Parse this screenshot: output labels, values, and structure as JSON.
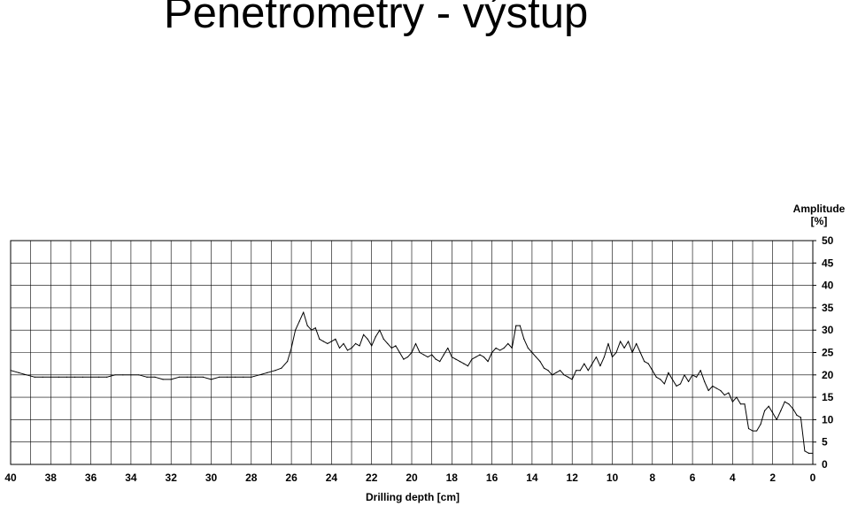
{
  "slide": {
    "title": "Penetrometry - výstup"
  },
  "chart_data": {
    "type": "line",
    "xlabel": "Drilling depth [cm]",
    "ylabel_line1": "Amplitude",
    "ylabel_line2": "[%]",
    "xlim": [
      40,
      0
    ],
    "ylim": [
      0,
      50
    ],
    "x_ticks": [
      40,
      38,
      36,
      34,
      32,
      30,
      28,
      26,
      24,
      22,
      20,
      18,
      16,
      14,
      12,
      10,
      8,
      6,
      4,
      2,
      0
    ],
    "y_ticks": [
      0,
      5,
      10,
      15,
      20,
      25,
      30,
      35,
      40,
      45,
      50
    ],
    "grid": true,
    "series": [
      {
        "color": "#000000",
        "x": [
          40.0,
          39.6,
          39.2,
          38.8,
          38.4,
          38.0,
          37.6,
          37.2,
          36.8,
          36.4,
          36.0,
          35.6,
          35.2,
          34.8,
          34.4,
          34.0,
          33.6,
          33.2,
          32.8,
          32.4,
          32.0,
          31.6,
          31.2,
          30.8,
          30.4,
          30.0,
          29.6,
          29.2,
          28.8,
          28.4,
          28.0,
          27.6,
          27.2,
          26.8,
          26.5,
          26.2,
          26.0,
          25.8,
          25.6,
          25.4,
          25.2,
          25.0,
          24.8,
          24.6,
          24.4,
          24.2,
          24.0,
          23.8,
          23.6,
          23.4,
          23.2,
          23.0,
          22.8,
          22.6,
          22.4,
          22.2,
          22.0,
          21.8,
          21.6,
          21.4,
          21.2,
          21.0,
          20.8,
          20.6,
          20.4,
          20.2,
          20.0,
          19.8,
          19.6,
          19.4,
          19.2,
          19.0,
          18.8,
          18.6,
          18.4,
          18.2,
          18.0,
          17.8,
          17.6,
          17.4,
          17.2,
          17.0,
          16.8,
          16.6,
          16.4,
          16.2,
          16.0,
          15.8,
          15.6,
          15.4,
          15.2,
          15.0,
          14.8,
          14.6,
          14.4,
          14.2,
          14.0,
          13.8,
          13.6,
          13.4,
          13.2,
          13.0,
          12.8,
          12.6,
          12.4,
          12.2,
          12.0,
          11.8,
          11.6,
          11.4,
          11.2,
          11.0,
          10.8,
          10.6,
          10.4,
          10.2,
          10.0,
          9.8,
          9.6,
          9.4,
          9.2,
          9.0,
          8.8,
          8.6,
          8.4,
          8.2,
          8.0,
          7.8,
          7.6,
          7.4,
          7.2,
          7.0,
          6.8,
          6.6,
          6.4,
          6.2,
          6.0,
          5.8,
          5.6,
          5.4,
          5.2,
          5.0,
          4.8,
          4.6,
          4.4,
          4.2,
          4.0,
          3.8,
          3.6,
          3.4,
          3.2,
          3.0,
          2.8,
          2.6,
          2.4,
          2.2,
          2.0,
          1.8,
          1.6,
          1.4,
          1.2,
          1.0,
          0.8,
          0.6,
          0.4,
          0.2,
          0.0
        ],
        "y": [
          21,
          20.5,
          20,
          19.5,
          19.5,
          19.5,
          19.5,
          19.5,
          19.5,
          19.5,
          19.5,
          19.5,
          19.5,
          20,
          20,
          20,
          20,
          19.5,
          19.5,
          19,
          19,
          19.5,
          19.5,
          19.5,
          19.5,
          19,
          19.5,
          19.5,
          19.5,
          19.5,
          19.5,
          20,
          20.5,
          21,
          21.5,
          23,
          26,
          30,
          32,
          34,
          31,
          30,
          30.5,
          28,
          27.5,
          27,
          27.5,
          28,
          26,
          27,
          25.5,
          26,
          27,
          26.5,
          29,
          28,
          26.5,
          28.5,
          30,
          28,
          27,
          26,
          26.5,
          25,
          23.5,
          24,
          25,
          27,
          25,
          24.5,
          24,
          24.5,
          23.5,
          23,
          24.5,
          26,
          24,
          23.5,
          23,
          22.5,
          22,
          23.5,
          24,
          24.5,
          24,
          23,
          25,
          26,
          25.5,
          26,
          27,
          26,
          31,
          31,
          28,
          26,
          25,
          24,
          23,
          21.5,
          21,
          20,
          20.5,
          21,
          20,
          19.5,
          19,
          21,
          21,
          22.5,
          21,
          22.5,
          24,
          22,
          24,
          27,
          24,
          25,
          27.5,
          26,
          27.5,
          25,
          27,
          25,
          23,
          22.5,
          21,
          19.5,
          19,
          18,
          20.5,
          19,
          17.5,
          18,
          20,
          18.5,
          20,
          19.5,
          21,
          18.5,
          16.5,
          17.5,
          17,
          16.5,
          15.5,
          16,
          14,
          15,
          13.5,
          13.5,
          8,
          7.5,
          7.5,
          9,
          12,
          13,
          11.5,
          10,
          12,
          14,
          13.5,
          12.5,
          11,
          10.5,
          3,
          2.5,
          2.5
        ]
      }
    ]
  }
}
